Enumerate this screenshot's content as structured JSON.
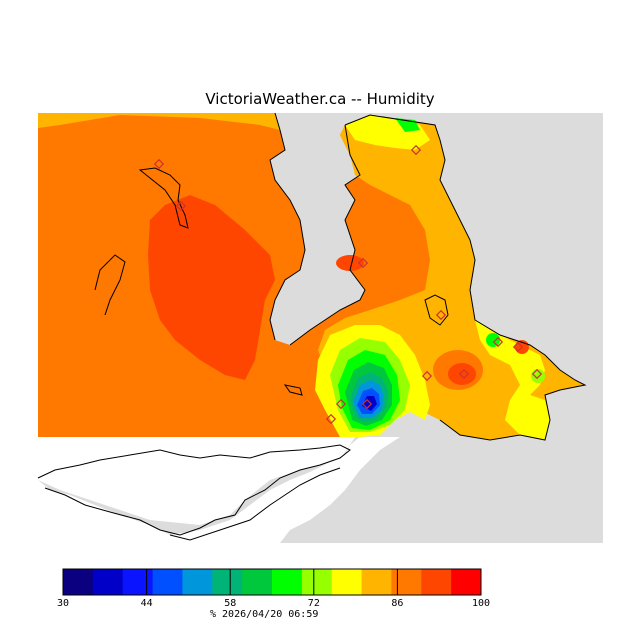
{
  "title": "VictoriaWeather.ca -- Humidity",
  "legend": {
    "ticks": [
      "30",
      "44",
      "58",
      "72",
      "86",
      "100"
    ],
    "footer": "%  2026/04/20 06:59",
    "colors": [
      "#0a0080",
      "#0000c8",
      "#0a14ff",
      "#0050ff",
      "#0096dc",
      "#00b478",
      "#00c83c",
      "#00ff00",
      "#96ff00",
      "#ffff00",
      "#ffb400",
      "#ff7800",
      "#ff4600",
      "#ff0000"
    ]
  },
  "colors": {
    "land_gray": "#dcdcdc",
    "water_white": "#ffffff",
    "coast_outline": "#000000",
    "station_marker": "#cc3333"
  }
}
